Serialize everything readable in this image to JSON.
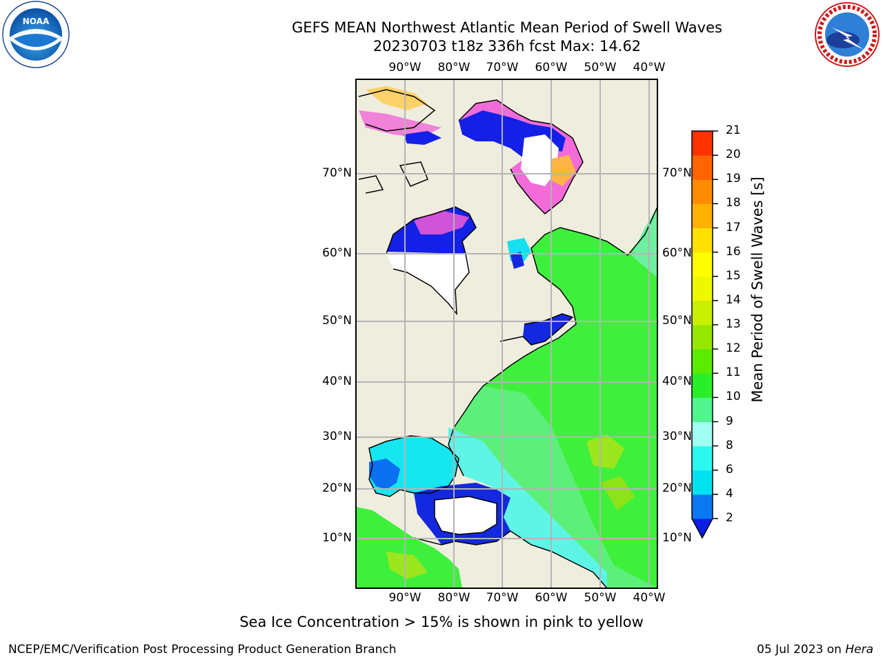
{
  "header": {
    "title_line1": "GEFS MEAN Northwest Atlantic Mean Period of Swell Waves",
    "title_line2": "20230703 t18z 336h fcst   Max: 14.62"
  },
  "logos": {
    "noaa_text": "NOAA",
    "noaa_ring": "NATIONAL OCEANIC AND ATMOSPHERIC ADMINISTRATION · U.S. DEPARTMENT OF COMMERCE",
    "nws_ring": "NATIONAL WEATHER SERVICE"
  },
  "map": {
    "lon_labels": [
      "90°W",
      "80°W",
      "70°W",
      "60°W",
      "50°W",
      "40°W"
    ],
    "lat_labels": [
      "70°N",
      "60°N",
      "50°N",
      "40°N",
      "30°N",
      "20°N",
      "10°N"
    ],
    "colors": {
      "land": "#efedde",
      "ice": "#ffffff",
      "grid": "#b4b4b4"
    }
  },
  "colorbar": {
    "title": "Mean Period of Swell Waves [s]",
    "tick_labels": [
      "2",
      "4",
      "6",
      "8",
      "9",
      "10",
      "11",
      "12",
      "13",
      "14",
      "15",
      "16",
      "17",
      "18",
      "19",
      "20",
      "21"
    ],
    "colors": [
      "#0a1ee6",
      "#0a78f0",
      "#00e1f0",
      "#2df8f0",
      "#64fff0",
      "#a0fff0",
      "#50f590",
      "#28ef28",
      "#5aeb00",
      "#96e600",
      "#c8f000",
      "#eef800",
      "#ffff00",
      "#ffe000",
      "#ffb000",
      "#ff8c00",
      "#ff6400",
      "#ff3200",
      "#ff0000"
    ]
  },
  "caption": "Sea Ice Concentration > 15% is shown in pink to yellow",
  "footer": {
    "left": "NCEP/EMC/Verification Post Processing Product Generation Branch",
    "date": "05 Jul 2023 on ",
    "machine": "Hera"
  }
}
